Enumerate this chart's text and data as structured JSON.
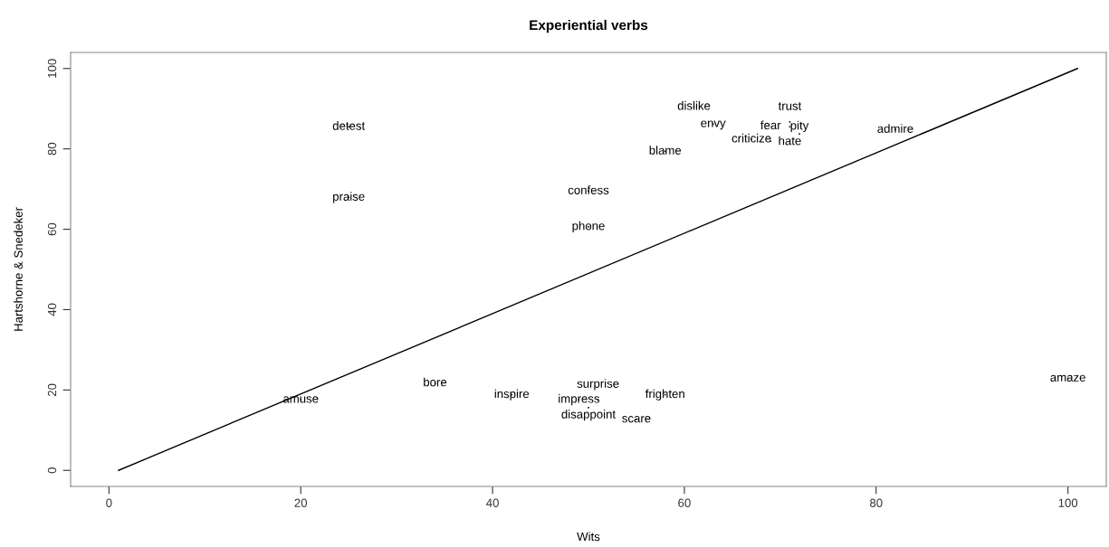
{
  "chart_data": {
    "type": "scatter",
    "title": "Experiential verbs",
    "xlabel": "Wits",
    "ylabel": "Hartshorne & Snedeker",
    "xlim": [
      -4,
      104
    ],
    "ylim": [
      -4,
      104
    ],
    "xticks": [
      0,
      20,
      40,
      60,
      80,
      100
    ],
    "yticks": [
      0,
      20,
      40,
      60,
      80,
      100
    ],
    "grid": false,
    "marker": "none",
    "series": [
      {
        "color": "#000000",
        "x": [
          25,
          25,
          50,
          50,
          61,
          63,
          58,
          67,
          69,
          71,
          71,
          72,
          82,
          100,
          20,
          34,
          42,
          58,
          55,
          49,
          51,
          50
        ],
        "values": [
          85.5,
          67.9,
          69.5,
          60.6,
          90.5,
          86.2,
          79.4,
          82.4,
          81.9,
          86.7,
          85.5,
          83.7,
          84.8,
          22.9,
          17.6,
          21.7,
          18.8,
          18.8,
          12.7,
          17.6,
          17.6,
          15.6
        ],
        "value_labels": [
          "detest",
          "praise",
          "confess",
          "phone",
          "dislike",
          "envy",
          "blame",
          "criticize",
          "fear",
          "trust",
          "hate",
          "pity",
          "admire",
          "amaze",
          "amuse",
          "bore",
          "inspire",
          "frighten",
          "scare",
          "impress",
          "surprise",
          "disappoint"
        ]
      },
      {
        "type": "line",
        "color": "#000000",
        "x": [
          1,
          101
        ],
        "values": [
          0,
          100
        ]
      }
    ]
  }
}
